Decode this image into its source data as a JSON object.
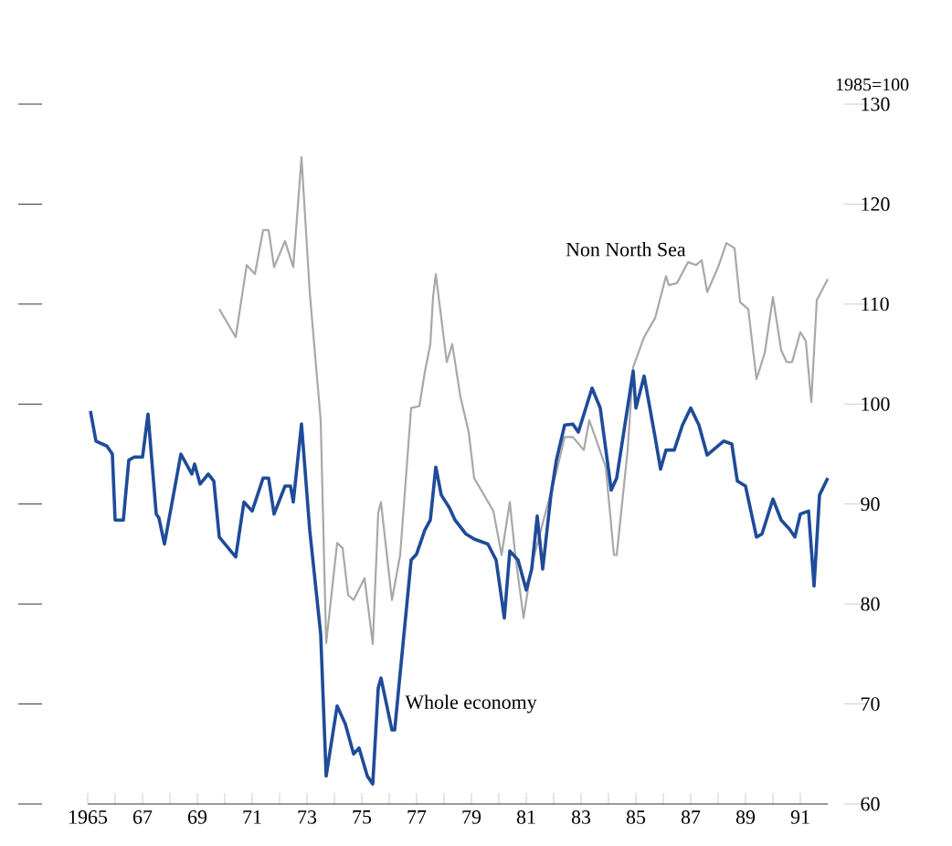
{
  "chart_data": {
    "type": "line",
    "ylabel": "1985=100",
    "legend": false,
    "grid": false,
    "marker": "none",
    "line_style": "solid",
    "xlim": [
      1965,
      1992
    ],
    "ylim": [
      60,
      130
    ],
    "xticks": [
      {
        "value": 1965,
        "label": "1965"
      },
      {
        "value": 1966,
        "label": null
      },
      {
        "value": 1967,
        "label": "67"
      },
      {
        "value": 1968,
        "label": null
      },
      {
        "value": 1969,
        "label": "69"
      },
      {
        "value": 1970,
        "label": null
      },
      {
        "value": 1971,
        "label": "71"
      },
      {
        "value": 1972,
        "label": null
      },
      {
        "value": 1973,
        "label": "73"
      },
      {
        "value": 1974,
        "label": null
      },
      {
        "value": 1975,
        "label": "75"
      },
      {
        "value": 1976,
        "label": null
      },
      {
        "value": 1977,
        "label": "77"
      },
      {
        "value": 1978,
        "label": null
      },
      {
        "value": 1979,
        "label": "79"
      },
      {
        "value": 1980,
        "label": null
      },
      {
        "value": 1981,
        "label": "81"
      },
      {
        "value": 1982,
        "label": null
      },
      {
        "value": 1983,
        "label": "83"
      },
      {
        "value": 1984,
        "label": null
      },
      {
        "value": 1985,
        "label": "85"
      },
      {
        "value": 1986,
        "label": null
      },
      {
        "value": 1987,
        "label": "87"
      },
      {
        "value": 1988,
        "label": null
      },
      {
        "value": 1989,
        "label": "89"
      },
      {
        "value": 1990,
        "label": null
      },
      {
        "value": 1991,
        "label": "91"
      }
    ],
    "yticks": [
      60,
      70,
      80,
      90,
      100,
      110,
      120,
      130
    ],
    "series": [
      {
        "name": "Non North Sea",
        "color": "#a8a8a8",
        "x": [
          1969.8,
          1970.4,
          1970.8,
          1971.1,
          1971.4,
          1971.6,
          1971.8,
          1972.2,
          1972.5,
          1972.8,
          1973.1,
          1973.5,
          1973.7,
          1974.1,
          1974.3,
          1974.5,
          1974.7,
          1975.1,
          1975.4,
          1975.6,
          1975.7,
          1976.1,
          1976.4,
          1976.8,
          1977.1,
          1977.3,
          1977.5,
          1977.6,
          1977.7,
          1978.1,
          1978.3,
          1978.6,
          1978.9,
          1979.1,
          1979.8,
          1980.1,
          1980.4,
          1980.6,
          1980.9,
          1981.2,
          1981.7,
          1982.1,
          1982.4,
          1982.7,
          1983.1,
          1983.3,
          1983.9,
          1984.2,
          1984.3,
          1984.7,
          1984.9,
          1985.3,
          1985.7,
          1986.1,
          1986.2,
          1986.5,
          1986.9,
          1987.2,
          1987.4,
          1987.6,
          1988.0,
          1988.3,
          1988.6,
          1988.8,
          1989.1,
          1989.4,
          1989.7,
          1990.0,
          1990.3,
          1990.5,
          1990.7,
          1991.0,
          1991.2,
          1991.4,
          1991.6,
          1992.0
        ],
        "values": [
          109.5,
          106.7,
          113.9,
          113,
          117.4,
          117.4,
          113.7,
          116.3,
          113.7,
          124.7,
          111.2,
          98.4,
          76.1,
          86.1,
          85.6,
          80.9,
          80.4,
          82.6,
          76,
          89.1,
          90.2,
          80.4,
          84.9,
          99.6,
          99.8,
          103.2,
          106,
          110.7,
          113,
          104.2,
          106,
          100.7,
          97.2,
          92.6,
          89.3,
          84.9,
          90.2,
          84.9,
          78.6,
          83.9,
          89.1,
          93.2,
          96.7,
          96.7,
          95.4,
          98.4,
          93.7,
          84.9,
          84.9,
          95.4,
          103.7,
          106.7,
          108.6,
          112.8,
          111.9,
          112.1,
          114.2,
          113.9,
          114.4,
          111.2,
          113.7,
          116.1,
          115.6,
          110.2,
          109.5,
          102.5,
          105.1,
          110.7,
          105.4,
          104.2,
          104.2,
          107.2,
          106.3,
          100.2,
          110.4,
          112.5
        ]
      },
      {
        "name": "Whole economy",
        "color": "#1f4b99",
        "x": [
          1965.1,
          1965.3,
          1965.7,
          1965.9,
          1966.0,
          1966.3,
          1966.5,
          1966.7,
          1967.0,
          1967.2,
          1967.5,
          1967.6,
          1967.8,
          1968.4,
          1968.8,
          1968.9,
          1969.1,
          1969.4,
          1969.6,
          1969.8,
          1970.4,
          1970.7,
          1971.0,
          1971.4,
          1971.6,
          1971.8,
          1972.2,
          1972.4,
          1972.5,
          1972.8,
          1973.1,
          1973.5,
          1973.7,
          1974.1,
          1974.4,
          1974.7,
          1974.9,
          1975.2,
          1975.4,
          1975.6,
          1975.7,
          1976.1,
          1976.2,
          1976.8,
          1977.0,
          1977.3,
          1977.5,
          1977.7,
          1977.9,
          1978.2,
          1978.4,
          1978.8,
          1979.1,
          1979.6,
          1979.9,
          1980.2,
          1980.4,
          1980.7,
          1981.0,
          1981.2,
          1981.4,
          1981.6,
          1981.9,
          1982.1,
          1982.4,
          1982.7,
          1982.9,
          1983.4,
          1983.7,
          1984.1,
          1984.3,
          1984.9,
          1985.0,
          1985.3,
          1985.7,
          1985.9,
          1986.1,
          1986.4,
          1986.7,
          1987.0,
          1987.3,
          1987.6,
          1988.2,
          1988.5,
          1988.7,
          1989.0,
          1989.4,
          1989.6,
          1990.0,
          1990.3,
          1990.6,
          1990.8,
          1991.0,
          1991.3,
          1991.5,
          1991.7,
          1992.0
        ],
        "values": [
          99.3,
          96.3,
          95.8,
          95,
          88.4,
          88.4,
          94.4,
          94.7,
          94.7,
          99,
          89,
          88.6,
          86,
          95,
          93,
          94,
          92,
          93,
          92.3,
          86.7,
          84.7,
          90.2,
          89.3,
          92.6,
          92.6,
          89,
          91.8,
          91.8,
          90.2,
          98,
          87.4,
          77,
          62.8,
          69.8,
          68,
          65,
          65.6,
          62.8,
          62,
          71.6,
          72.6,
          67.4,
          67.4,
          84.4,
          85,
          87.4,
          88.4,
          93.7,
          90.9,
          89.6,
          88.4,
          87,
          86.5,
          86,
          84.4,
          78.6,
          85.3,
          84.4,
          81.4,
          83.5,
          88.8,
          83.5,
          90.9,
          94.4,
          97.9,
          98,
          97.2,
          101.6,
          99.6,
          91.4,
          92.6,
          103.3,
          99.6,
          102.8,
          96.7,
          93.5,
          95.4,
          95.4,
          97.9,
          99.6,
          97.9,
          94.9,
          96.3,
          96,
          92.3,
          91.8,
          86.7,
          87,
          90.5,
          88.4,
          87.5,
          86.7,
          89,
          89.3,
          81.8,
          90.9,
          92.6
        ]
      }
    ]
  }
}
